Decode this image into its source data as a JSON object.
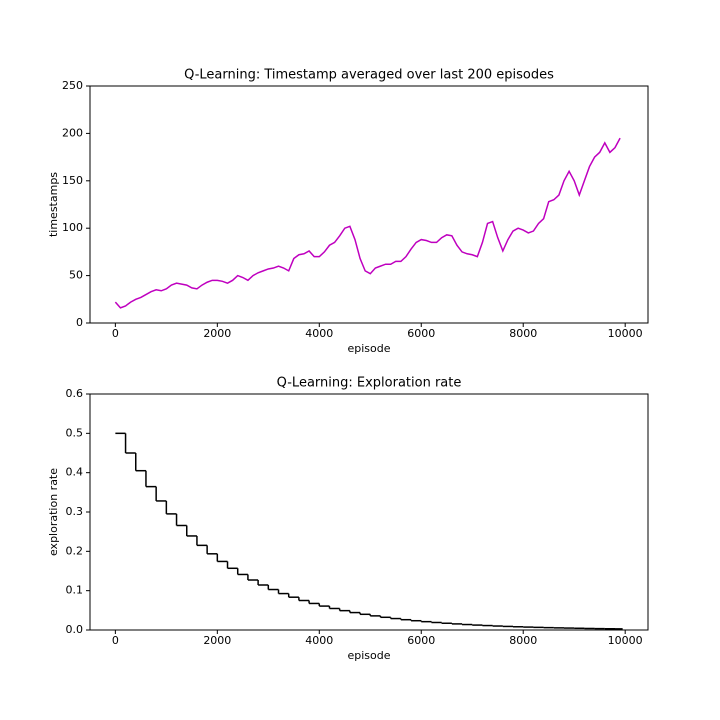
{
  "chart_data": [
    {
      "type": "line",
      "title": "Q-Learning: Timestamp averaged over last 200 episodes",
      "xlabel": "episode",
      "ylabel": "timestamps",
      "color": "#bf00bf",
      "x": [
        0,
        100,
        200,
        300,
        400,
        500,
        600,
        700,
        800,
        900,
        1000,
        1100,
        1200,
        1300,
        1400,
        1500,
        1600,
        1700,
        1800,
        1900,
        2000,
        2100,
        2200,
        2300,
        2400,
        2500,
        2600,
        2700,
        2800,
        2900,
        3000,
        3100,
        3200,
        3300,
        3400,
        3500,
        3600,
        3700,
        3800,
        3900,
        4000,
        4100,
        4200,
        4300,
        4400,
        4500,
        4600,
        4700,
        4800,
        4900,
        5000,
        5100,
        5200,
        5300,
        5400,
        5500,
        5600,
        5700,
        5800,
        5900,
        6000,
        6100,
        6200,
        6300,
        6400,
        6500,
        6600,
        6700,
        6800,
        6900,
        7000,
        7100,
        7200,
        7300,
        7400,
        7500,
        7600,
        7700,
        7800,
        7900,
        8000,
        8100,
        8200,
        8300,
        8400,
        8500,
        8600,
        8700,
        8800,
        8900,
        9000,
        9100,
        9200,
        9300,
        9400,
        9500,
        9600,
        9700,
        9800,
        9900
      ],
      "values": [
        22,
        16,
        18,
        22,
        25,
        27,
        30,
        33,
        35,
        34,
        36,
        40,
        42,
        41,
        40,
        37,
        36,
        40,
        43,
        45,
        45,
        44,
        42,
        45,
        50,
        48,
        45,
        50,
        53,
        55,
        57,
        58,
        60,
        58,
        55,
        68,
        72,
        73,
        76,
        70,
        70,
        75,
        82,
        85,
        92,
        100,
        102,
        88,
        68,
        55,
        52,
        58,
        60,
        62,
        62,
        65,
        65,
        70,
        78,
        85,
        88,
        87,
        85,
        85,
        90,
        93,
        92,
        82,
        75,
        73,
        72,
        70,
        85,
        105,
        107,
        90,
        76,
        88,
        97,
        100,
        98,
        95,
        97,
        105,
        110,
        128,
        130,
        135,
        150,
        160,
        150,
        135,
        150,
        165,
        175,
        180,
        190,
        180,
        185,
        195
      ],
      "xlim": [
        -497.5,
        10447.5
      ],
      "xticks": [
        0,
        2000,
        4000,
        6000,
        8000,
        10000
      ],
      "ylim": [
        0,
        250
      ],
      "yticks": [
        0,
        50,
        100,
        150,
        200,
        250
      ]
    },
    {
      "type": "step",
      "title": "Q-Learning: Exploration rate",
      "xlabel": "episode",
      "ylabel": "exploration rate",
      "color": "#000000",
      "x": [
        0,
        200,
        400,
        600,
        800,
        1000,
        1200,
        1400,
        1600,
        1800,
        2000,
        2200,
        2400,
        2600,
        2800,
        3000,
        3200,
        3400,
        3600,
        3800,
        4000,
        4200,
        4400,
        4600,
        4800,
        5000,
        5200,
        5400,
        5600,
        5800,
        6000,
        6200,
        6400,
        6600,
        6800,
        7000,
        7200,
        7400,
        7600,
        7800,
        8000,
        8200,
        8400,
        8600,
        8800,
        9000,
        9200,
        9400,
        9600,
        9800
      ],
      "values": [
        0.5,
        0.45,
        0.405,
        0.3645,
        0.3281,
        0.2952,
        0.2657,
        0.2391,
        0.2152,
        0.1937,
        0.1743,
        0.1569,
        0.1412,
        0.1271,
        0.1144,
        0.1029,
        0.0926,
        0.0834,
        0.075,
        0.0675,
        0.0608,
        0.0547,
        0.0492,
        0.0443,
        0.0399,
        0.0359,
        0.0323,
        0.0291,
        0.0262,
        0.0236,
        0.0212,
        0.0191,
        0.0172,
        0.0155,
        0.0139,
        0.0125,
        0.0113,
        0.0101,
        0.0091,
        0.0082,
        0.0074,
        0.0067,
        0.006,
        0.0054,
        0.0049,
        0.0044,
        0.0039,
        0.0035,
        0.0032,
        0.0029
      ],
      "xlim": [
        -497.5,
        10447.5
      ],
      "xticks": [
        0,
        2000,
        4000,
        6000,
        8000,
        10000
      ],
      "ylim": [
        0,
        0.6
      ],
      "yticks": [
        {
          "value": 0,
          "label": "0.0"
        },
        0.1,
        0.2,
        0.3,
        0.4,
        0.5,
        0.6
      ]
    }
  ]
}
